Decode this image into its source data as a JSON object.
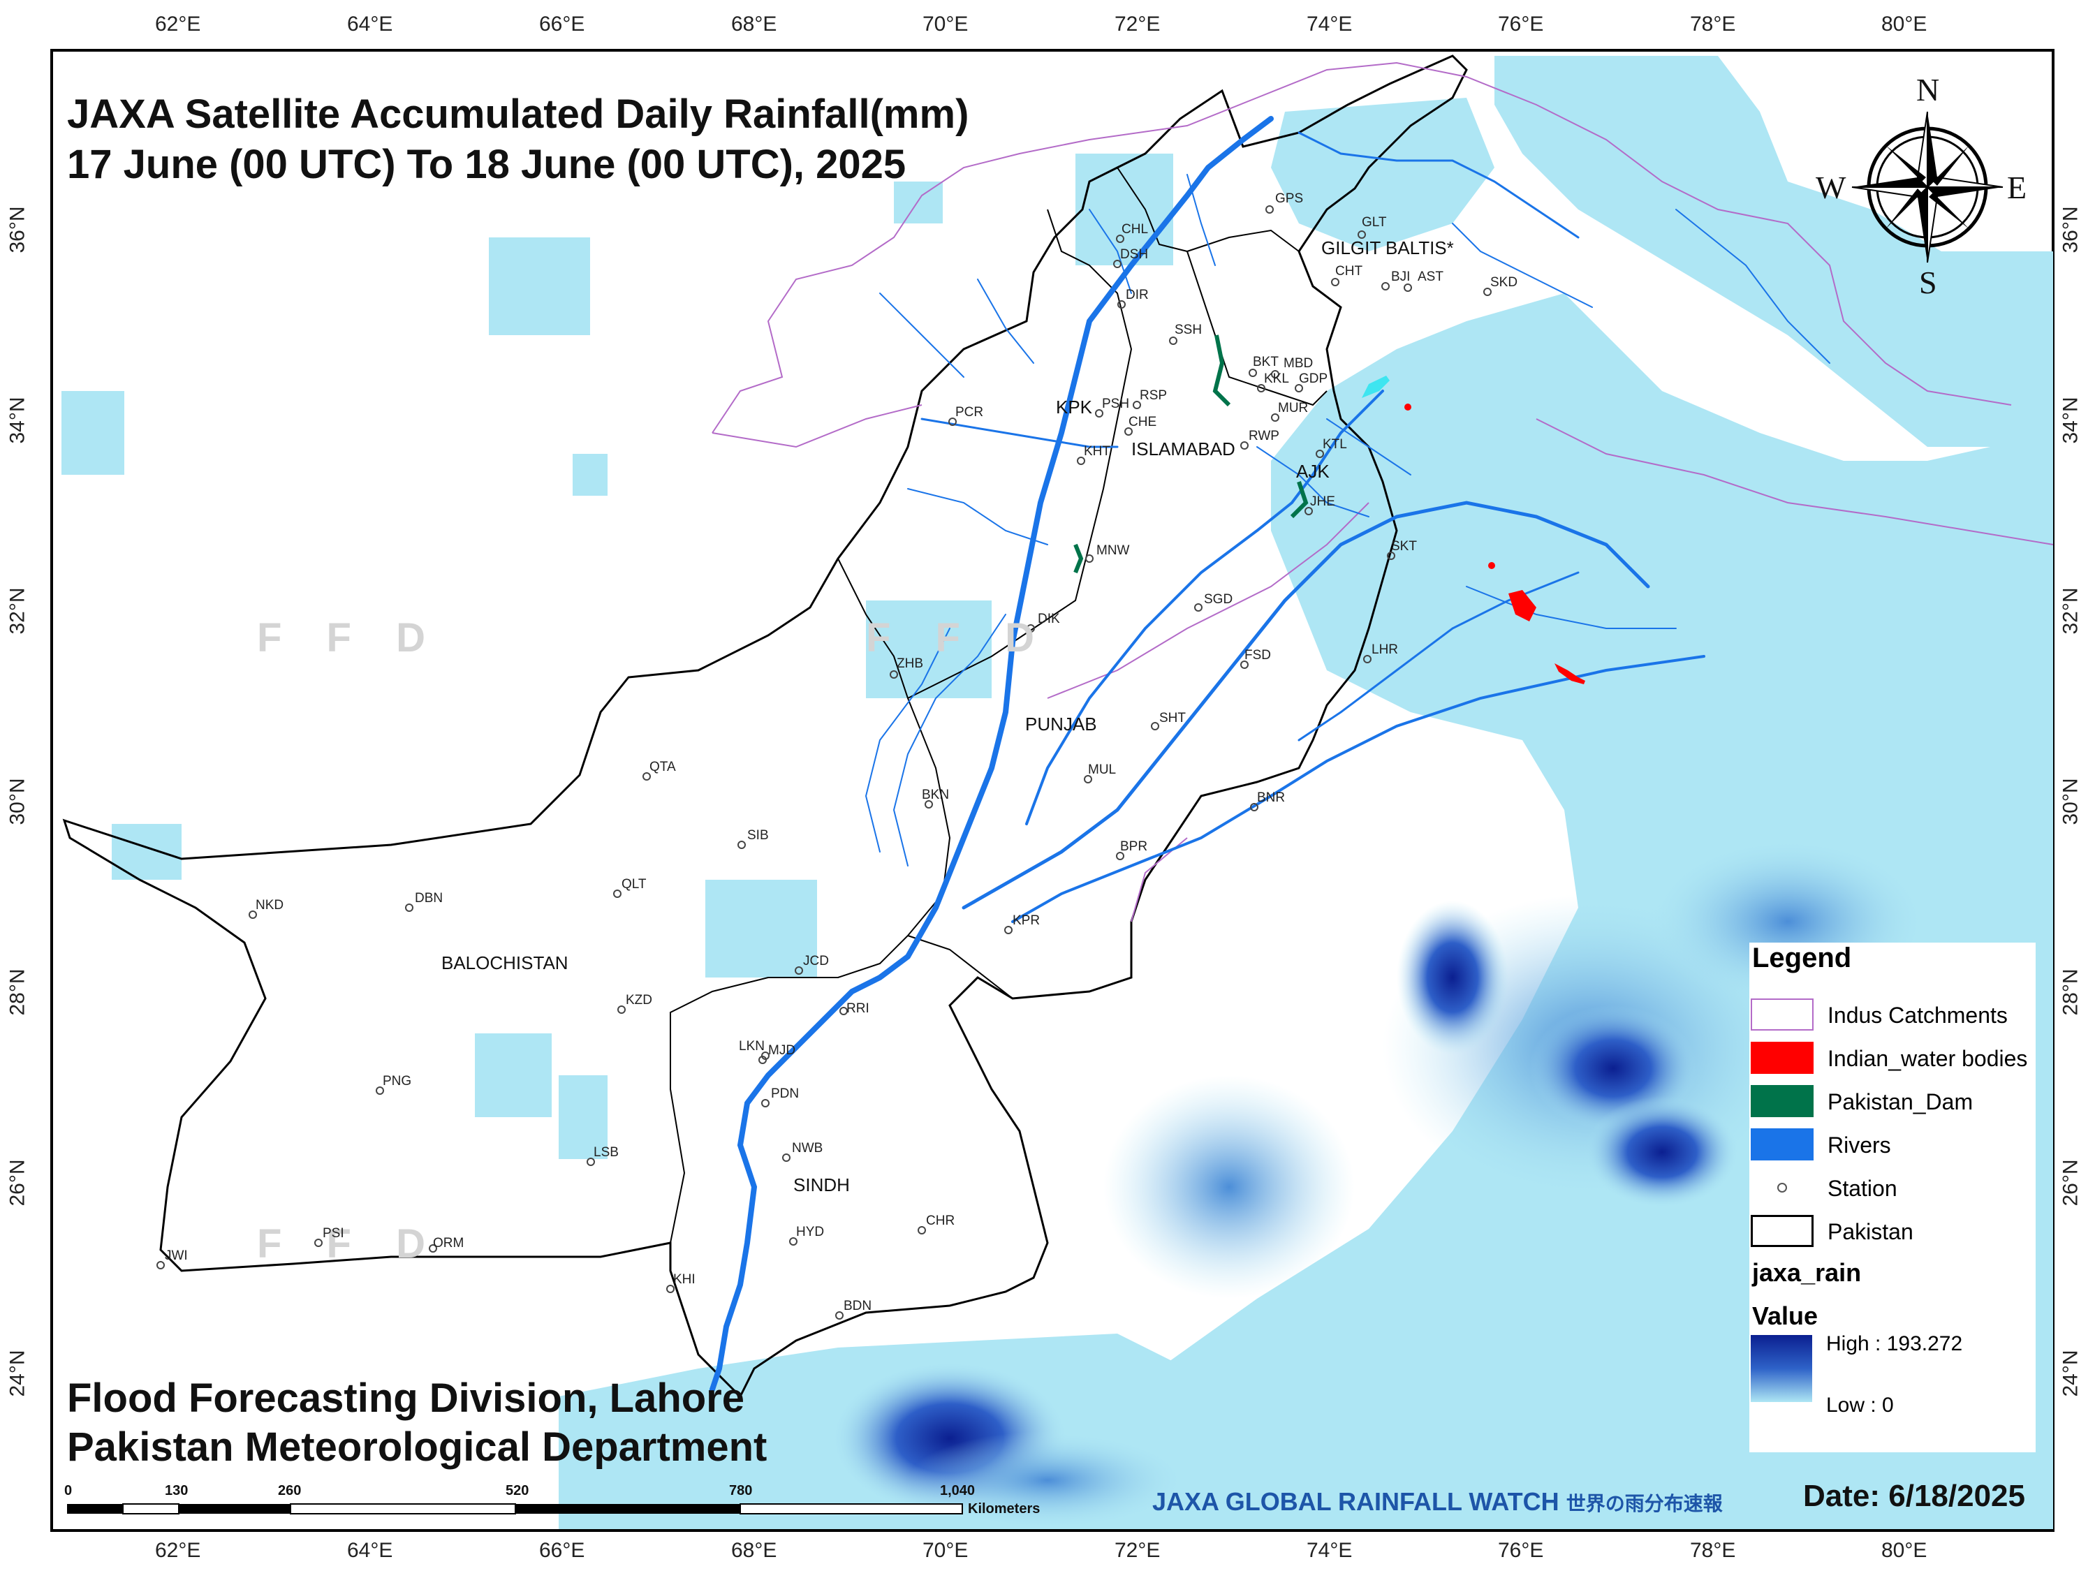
{
  "title": {
    "line1": "JAXA Satellite Accumulated Daily Rainfall(mm)",
    "line2": "17 June (00 UTC) To 18 June (00 UTC), 2025"
  },
  "org": {
    "line1": "Flood Forecasting Division, Lahore",
    "line2": "Pakistan Meteorological Department"
  },
  "date_label": "Date: 6/18/2025",
  "jaxa_banner": {
    "main": "JAXA GLOBAL RAINFALL WATCH",
    "sub": "世界の雨分布速報"
  },
  "watermark": "F F D",
  "compass": {
    "n": "N",
    "s": "S",
    "e": "E",
    "w": "W"
  },
  "lon_ticks": [
    "62°E",
    "64°E",
    "66°E",
    "68°E",
    "70°E",
    "72°E",
    "74°E",
    "76°E",
    "78°E",
    "80°E"
  ],
  "lat_ticks": [
    "36°N",
    "34°N",
    "32°N",
    "30°N",
    "28°N",
    "26°N",
    "24°N"
  ],
  "legend": {
    "title": "Legend",
    "items": [
      {
        "label": "Indus Catchments",
        "color": "#b36bc8"
      },
      {
        "label": "Indian_water bodies",
        "color": "#ff0000"
      },
      {
        "label": "Pakistan_Dam",
        "color": "#00734a"
      },
      {
        "label": "Rivers",
        "color": "#1a74e8"
      },
      {
        "label": "Station",
        "color": "#555555"
      },
      {
        "label": "Pakistan",
        "color": "#000000"
      }
    ],
    "raster_name": "jaxa_rain",
    "value_label": "Value",
    "high": "High : 193.272",
    "low": "Low : 0"
  },
  "scale": {
    "labels": [
      "0",
      "130",
      "260",
      "520",
      "780",
      "1,040"
    ],
    "unit": "Kilometers"
  },
  "provinces": [
    {
      "name": "KPK"
    },
    {
      "name": "ISLAMABAD"
    },
    {
      "name": "AJK"
    },
    {
      "name": "GILGIT BALTIS*"
    },
    {
      "name": "PUNJAB"
    },
    {
      "name": "BALOCHISTAN"
    },
    {
      "name": "SINDH"
    }
  ],
  "stations": [
    "GPS",
    "GLT",
    "CHL",
    "DSH",
    "CHT",
    "BJI",
    "AST",
    "SKD",
    "DIR",
    "SSH",
    "BKT",
    "MBD",
    "KKL",
    "GDP",
    "PSH",
    "RSP",
    "MUR",
    "PCR",
    "CHE",
    "KHT",
    "RWP",
    "KTL",
    "JHE",
    "MNW",
    "SKT",
    "SGD",
    "DIK",
    "LHR",
    "FSD",
    "ZHB",
    "SHT",
    "QTA",
    "MUL",
    "BKN",
    "BNR",
    "SIB",
    "BPR",
    "QLT",
    "NKD",
    "DBN",
    "KPR",
    "JCD",
    "KZD",
    "LKN",
    "RRI",
    "MJD",
    "PNG",
    "PDN",
    "NWB",
    "LSB",
    "CHR",
    "HYD",
    "PSI",
    "ORM",
    "JWI",
    "KHI",
    "BDN"
  ],
  "colors": {
    "light_rain": "#aee6f4",
    "mid_rain": "#5fa7e0",
    "heavy_rain": "#0b1f90",
    "river": "#1a74e8",
    "catchment": "#b36bc8"
  }
}
